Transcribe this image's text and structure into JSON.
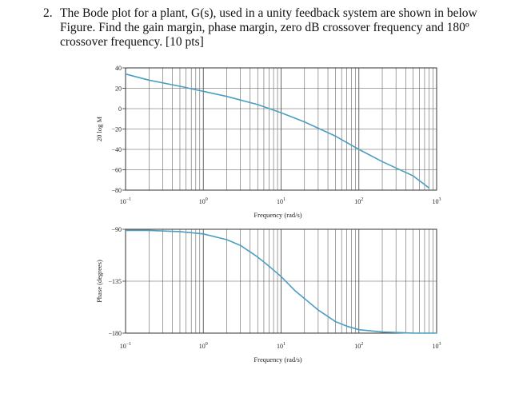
{
  "question": {
    "number": "2.",
    "text": "The Bode plot for a plant, G(s), used in a unity feedback system are shown in below Figure. Find the gain margin, phase margin, zero dB crossover frequency and 180º crossover frequency. [10 pts]"
  },
  "chart_data": [
    {
      "type": "line",
      "xscale": "log",
      "xlim": [
        0.1,
        1000
      ],
      "ylim": [
        -80,
        40
      ],
      "xlabel": "Frequency (rad/s)",
      "ylabel": "20 log M",
      "xticks": [
        {
          "value": 0.1,
          "base": "10",
          "exp": "−1"
        },
        {
          "value": 1,
          "base": "10",
          "exp": "0"
        },
        {
          "value": 10,
          "base": "10",
          "exp": "1"
        },
        {
          "value": 100,
          "base": "10",
          "exp": "2"
        },
        {
          "value": 1000,
          "base": "10",
          "exp": "3"
        }
      ],
      "yticks": [
        {
          "value": 40,
          "label": "40"
        },
        {
          "value": 20,
          "label": "20"
        },
        {
          "value": 0,
          "label": "0"
        },
        {
          "value": -20,
          "label": "−20"
        },
        {
          "value": -40,
          "label": "−40"
        },
        {
          "value": -60,
          "label": "−60"
        },
        {
          "value": -80,
          "label": "−80"
        }
      ],
      "grid": true,
      "line_color": "#4b9ec2",
      "series": [
        {
          "x": [
            0.1,
            0.2,
            0.5,
            1,
            2,
            5,
            10,
            20,
            50,
            100,
            200,
            500,
            800
          ],
          "y": [
            34,
            28,
            22,
            17,
            12,
            4,
            -4,
            -13,
            -27,
            -40,
            -52,
            -66,
            -78
          ]
        }
      ]
    },
    {
      "type": "line",
      "xscale": "log",
      "xlim": [
        0.1,
        1000
      ],
      "ylim": [
        -180,
        -90
      ],
      "xlabel": "Frequency (rad/s)",
      "ylabel": "Phase (degrees)",
      "xticks": [
        {
          "value": 0.1,
          "base": "10",
          "exp": "−1"
        },
        {
          "value": 1,
          "base": "10",
          "exp": "0"
        },
        {
          "value": 10,
          "base": "10",
          "exp": "1"
        },
        {
          "value": 100,
          "base": "10",
          "exp": "2"
        },
        {
          "value": 1000,
          "base": "10",
          "exp": "3"
        }
      ],
      "yticks": [
        {
          "value": -90,
          "label": "−90"
        },
        {
          "value": -135,
          "label": "−135"
        },
        {
          "value": -180,
          "label": "−180"
        }
      ],
      "grid": true,
      "line_color": "#4b9ec2",
      "series": [
        {
          "x": [
            0.1,
            0.2,
            0.5,
            1,
            2,
            3,
            5,
            7,
            10,
            15,
            20,
            30,
            50,
            70,
            100,
            200,
            500,
            1000
          ],
          "y": [
            -91,
            -91,
            -92,
            -94,
            -99,
            -104,
            -114,
            -122,
            -131,
            -143,
            -150,
            -160,
            -170,
            -174,
            -177,
            -179,
            -180,
            -180
          ]
        }
      ]
    }
  ]
}
